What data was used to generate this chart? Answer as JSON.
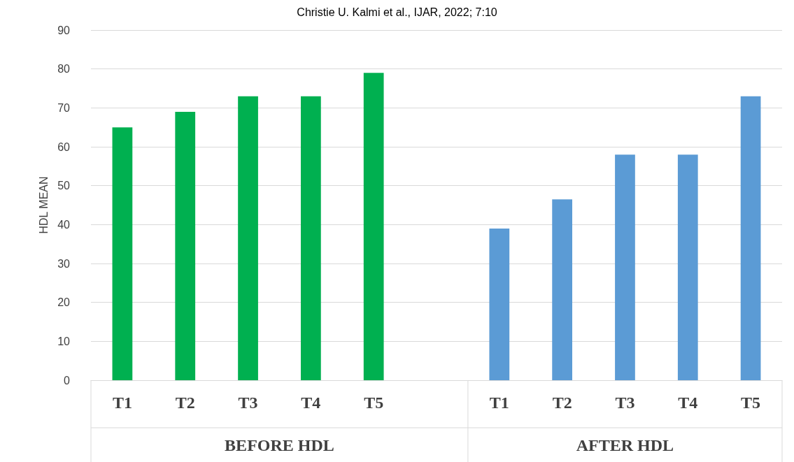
{
  "chart_data": {
    "type": "bar",
    "title": "Christie U. Kalmi et al., IJAR, 2022; 7:10",
    "ylabel": "HDL MEAN",
    "categories": [
      "T1",
      "T2",
      "T3",
      "T4",
      "T5",
      null,
      "T1",
      "T2",
      "T3",
      "T4",
      "T5"
    ],
    "values": [
      65,
      69,
      73,
      73,
      79,
      null,
      39,
      46.5,
      58,
      58,
      73
    ],
    "colors": [
      "#00b050",
      "#00b050",
      "#00b050",
      "#00b050",
      "#00b050",
      "#00b050",
      "#5b9bd5",
      "#5b9bd5",
      "#5b9bd5",
      "#5b9bd5",
      "#5b9bd5"
    ],
    "annotations": [
      "BEFORE HDL",
      "AFTER HDL"
    ],
    "ylim": [
      0,
      90
    ],
    "yticks": [
      0,
      10,
      20,
      30,
      40,
      50,
      60,
      70,
      80,
      90
    ],
    "grid": true
  }
}
